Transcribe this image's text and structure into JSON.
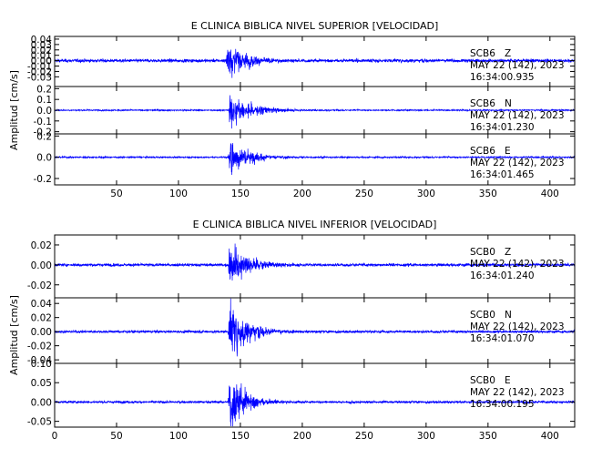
{
  "chart_data": [
    {
      "type": "line",
      "title": "E CLINICA BIBLICA NIVEL SUPERIOR [VELOCIDAD]",
      "ylabel": "Amplitud [cm/s]",
      "xlim": [
        0,
        420
      ],
      "xticks": [
        "50",
        "100",
        "150",
        "200",
        "250",
        "300",
        "350",
        "400"
      ],
      "panels": [
        {
          "station": "SCB6",
          "component": "Z",
          "date": "MAY 22 (142), 2023",
          "time": "16:34:00.935",
          "ylim": [
            -0.048,
            0.045
          ],
          "yticks": [
            "0.04",
            "0.03",
            "0.02",
            "0.01",
            "0.00",
            "-0.01",
            "-0.02",
            "-0.03"
          ],
          "onset": 138,
          "peak": 0.045,
          "noise": 0.0025,
          "decay": 15
        },
        {
          "station": "SCB6",
          "component": "N",
          "date": "MAY 22 (142), 2023",
          "time": "16:34:01.230",
          "ylim": [
            -0.22,
            0.22
          ],
          "yticks": [
            "0.2",
            "0.1",
            "0.0",
            "-0.1",
            "-0.2"
          ],
          "onset": 140,
          "peak": 0.2,
          "noise": 0.005,
          "decay": 18
        },
        {
          "station": "SCB6",
          "component": "E",
          "date": "MAY 22 (142), 2023",
          "time": "16:34:01.465",
          "ylim": [
            -0.26,
            0.22
          ],
          "yticks": [
            "0.2",
            "0.0",
            "-0.2"
          ],
          "onset": 140,
          "peak": 0.22,
          "noise": 0.006,
          "decay": 16
        }
      ]
    },
    {
      "type": "line",
      "title": "E CLINICA BIBLICA NIVEL INFERIOR [VELOCIDAD]",
      "ylabel": "Amplitud [cm/s]",
      "xlim": [
        0,
        420
      ],
      "xticks": [
        "0",
        "50",
        "100",
        "150",
        "200",
        "250",
        "300",
        "350",
        "400"
      ],
      "panels": [
        {
          "station": "SCB0",
          "component": "Z",
          "date": "MAY 22 (142), 2023",
          "time": "16:34:01.240",
          "ylim": [
            -0.033,
            0.03
          ],
          "yticks": [
            "0.02",
            "0.00",
            "-0.02"
          ],
          "onset": 140,
          "peak": 0.03,
          "noise": 0.0012,
          "decay": 15
        },
        {
          "station": "SCB0",
          "component": "N",
          "date": "MAY 22 (142), 2023",
          "time": "16:34:01.070",
          "ylim": [
            -0.045,
            0.048
          ],
          "yticks": [
            "0.04",
            "0.02",
            "0.00",
            "-0.02",
            "-0.04"
          ],
          "onset": 140,
          "peak": 0.045,
          "noise": 0.0015,
          "decay": 16
        },
        {
          "station": "SCB0",
          "component": "E",
          "date": "MAY 22 (142), 2023",
          "time": "16:34:00.195",
          "ylim": [
            -0.065,
            0.1
          ],
          "yticks": [
            "0.10",
            "0.05",
            "0.00",
            "-0.05"
          ],
          "onset": 140,
          "peak": 0.1,
          "noise": 0.0025,
          "decay": 13
        }
      ]
    }
  ],
  "colors": {
    "trace": "#0000ff",
    "axis": "#000000"
  }
}
